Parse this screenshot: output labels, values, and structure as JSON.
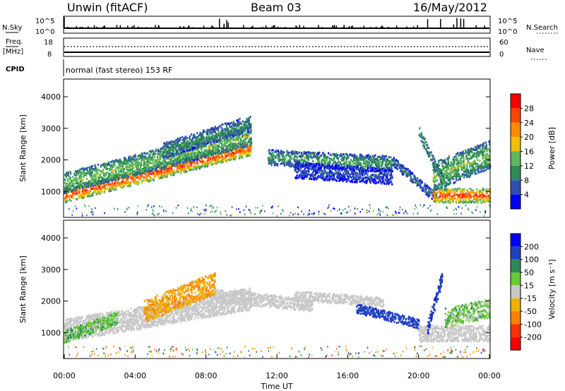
{
  "header": {
    "station": "Unwin (fitACF)",
    "beam": "Beam 03",
    "date": "16/May/2012"
  },
  "nsky_panel": {
    "left_label": "N.Sky",
    "right_label": "N.Search",
    "left_ticks": [
      "10^5",
      "10^0"
    ],
    "right_ticks": [
      "10^5",
      "10^0"
    ]
  },
  "freq_panel": {
    "left_label_1": "Freq.",
    "left_label_2": "[MHz]",
    "left_ticks": [
      "18",
      "8"
    ],
    "right_label": "Nave",
    "right_ticks": [
      "60",
      "0"
    ]
  },
  "cpid_panel": {
    "label": "CPID",
    "text": "normal (fast stereo) 153 RF"
  },
  "colors": {
    "power_scale": [
      "#0000ff",
      "#3050b0",
      "#2e8b57",
      "#5cb85c",
      "#f0c000",
      "#ff8c00",
      "#ff4500",
      "#ff0000"
    ],
    "velocity_scale": [
      "#0000ff",
      "#2040c0",
      "#2e8b57",
      "#66cc33",
      "#c8c8c8",
      "#f0b000",
      "#ff8000",
      "#ff3000",
      "#ff0000"
    ],
    "ground_scatter": "#c8c8c8"
  },
  "chart_data": [
    {
      "type": "heatmap",
      "name": "Power",
      "ylabel": "Slant Range [km]",
      "yticks": [
        1000,
        2000,
        3000,
        4000
      ],
      "ylim": [
        180,
        4560
      ],
      "xlim": [
        0,
        24
      ],
      "colorbar_label": "Power [dB]",
      "colorbar_ticks": [
        4,
        8,
        12,
        16,
        20,
        24,
        28
      ],
      "colorbar_range": [
        0,
        32
      ],
      "bands": [
        {
          "t0": 0.0,
          "t1": 10.5,
          "r0a": 900,
          "r0b": 2400,
          "w": 450,
          "pow": 27
        },
        {
          "t0": 0.0,
          "t1": 10.5,
          "r0a": 1300,
          "r0b": 2800,
          "w": 650,
          "pow": 15
        },
        {
          "t0": 5.5,
          "t1": 10.5,
          "r0a": 2300,
          "r0b": 3200,
          "w": 500,
          "pow": 11
        },
        {
          "t0": 11.5,
          "t1": 18.5,
          "r0a": 2100,
          "r0b": 1900,
          "w": 500,
          "pow": 12
        },
        {
          "t0": 13.0,
          "t1": 18.5,
          "r0a": 1700,
          "r0b": 1500,
          "w": 500,
          "pow": 6
        },
        {
          "t0": 18.5,
          "t1": 21.0,
          "r0a": 2000,
          "r0b": 800,
          "w": 300,
          "pow": 9
        },
        {
          "t0": 20.8,
          "t1": 24.0,
          "r0a": 900,
          "r0b": 900,
          "w": 450,
          "pow": 27
        },
        {
          "t0": 20.8,
          "t1": 24.0,
          "r0a": 1500,
          "r0b": 2200,
          "w": 900,
          "pow": 15
        },
        {
          "t0": 20.0,
          "t1": 21.5,
          "r0a": 2900,
          "r0b": 1200,
          "w": 300,
          "pow": 13
        }
      ]
    },
    {
      "type": "heatmap",
      "name": "Velocity",
      "ylabel": "Slant Range [km]",
      "xlabel": "Time UT",
      "xticks": [
        "00:00",
        "04:00",
        "08:00",
        "12:00",
        "16:00",
        "20:00",
        "00:00"
      ],
      "xtick_hours": [
        0,
        4,
        8,
        12,
        16,
        20,
        24
      ],
      "yticks": [
        1000,
        2000,
        3000,
        4000
      ],
      "ylim": [
        180,
        4560
      ],
      "xlim": [
        0,
        24
      ],
      "colorbar_label": "Velocity [m s⁻¹]",
      "colorbar_ticks": [
        200,
        100,
        50,
        15,
        -15,
        -50,
        -100,
        -200
      ],
      "bands": [
        {
          "t0": 0.0,
          "t1": 10.5,
          "r0a": 1100,
          "r0b": 2100,
          "w": 700,
          "vel": 0,
          "gs": true
        },
        {
          "t0": 4.5,
          "t1": 8.5,
          "r0a": 1700,
          "r0b": 2600,
          "w": 700,
          "vel": -40
        },
        {
          "t0": 0.0,
          "t1": 3.0,
          "r0a": 900,
          "r0b": 1500,
          "w": 400,
          "vel": 35
        },
        {
          "t0": 8.5,
          "t1": 14.0,
          "r0a": 2200,
          "r0b": 1900,
          "w": 400,
          "vel": 0,
          "gs": true
        },
        {
          "t0": 13.0,
          "t1": 18.0,
          "r0a": 2200,
          "r0b": 2000,
          "w": 300,
          "vel": 0,
          "gs": true
        },
        {
          "t0": 16.5,
          "t1": 20.0,
          "r0a": 1800,
          "r0b": 1300,
          "w": 300,
          "vel": 150
        },
        {
          "t0": 20.0,
          "t1": 24.0,
          "r0a": 1000,
          "r0b": 1000,
          "w": 500,
          "vel": 0,
          "gs": true
        },
        {
          "t0": 20.5,
          "t1": 21.3,
          "r0a": 1200,
          "r0b": 2800,
          "w": 400,
          "vel": 180
        },
        {
          "t0": 21.5,
          "t1": 24.0,
          "r0a": 1500,
          "r0b": 1800,
          "w": 600,
          "vel": 30
        }
      ]
    }
  ]
}
